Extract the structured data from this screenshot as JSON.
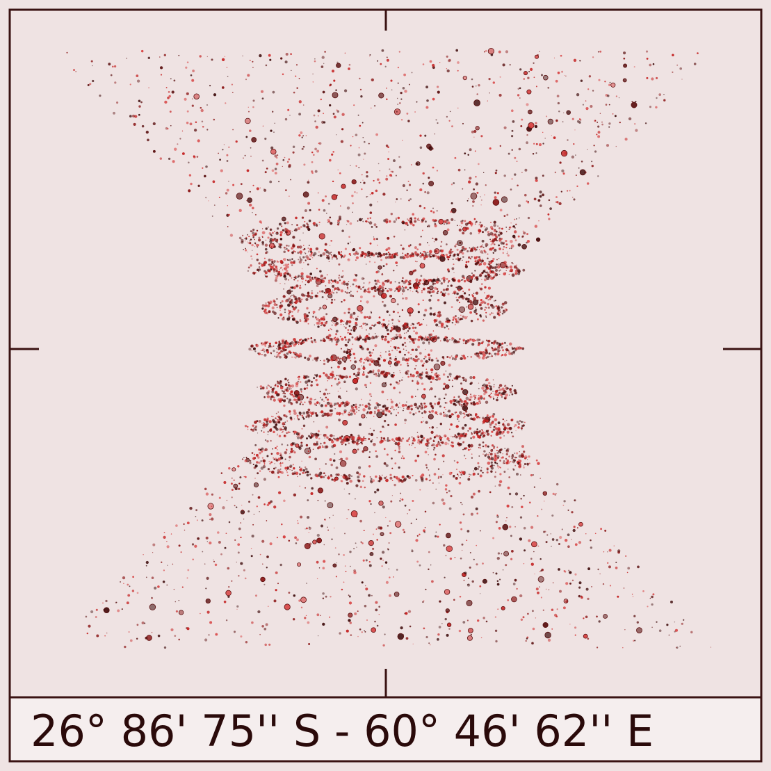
{
  "caption": "26° 86' 75'' S - 60° 46' 62'' E"
}
